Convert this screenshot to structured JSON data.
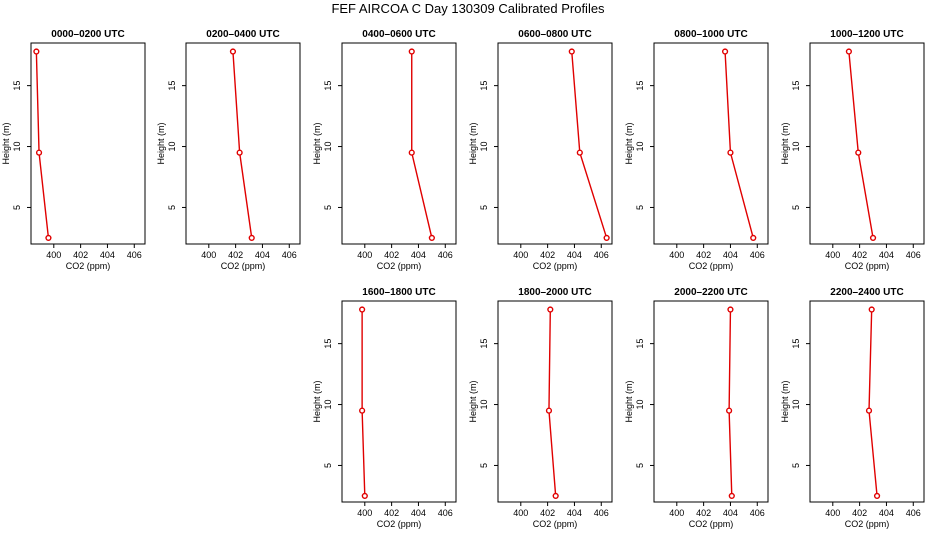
{
  "chart_data": {
    "type": "line",
    "title": "FEF AIRCOA C  Day 130309  Calibrated Profiles",
    "xlabel": "CO2 (ppm)",
    "ylabel": "Height (m)",
    "xlim": [
      398.3,
      406.8
    ],
    "ylim": [
      2.0,
      18.5
    ],
    "xticks": [
      400,
      402,
      404,
      406
    ],
    "yticks": [
      5,
      10,
      15
    ],
    "heights": [
      17.8,
      9.5,
      2.5
    ],
    "panels": [
      {
        "title": "0000–0200 UTC",
        "row": 0,
        "col": 0,
        "series": [
          {
            "name": "CO2",
            "x": [
              398.7,
              398.9,
              399.6
            ],
            "y": [
              17.8,
              9.5,
              2.5
            ]
          }
        ]
      },
      {
        "title": "0200–0400 UTC",
        "row": 0,
        "col": 1,
        "series": [
          {
            "name": "CO2",
            "x": [
              401.8,
              402.3,
              403.2
            ],
            "y": [
              17.8,
              9.5,
              2.5
            ]
          }
        ]
      },
      {
        "title": "0400–0600 UTC",
        "row": 0,
        "col": 2,
        "series": [
          {
            "name": "CO2",
            "x": [
              403.5,
              403.5,
              405.0
            ],
            "y": [
              17.8,
              9.5,
              2.5
            ]
          }
        ]
      },
      {
        "title": "0600–0800 UTC",
        "row": 0,
        "col": 3,
        "series": [
          {
            "name": "CO2",
            "x": [
              403.8,
              404.4,
              406.4
            ],
            "y": [
              17.8,
              9.5,
              2.5
            ]
          }
        ]
      },
      {
        "title": "0800–1000 UTC",
        "row": 0,
        "col": 4,
        "series": [
          {
            "name": "CO2",
            "x": [
              403.6,
              404.0,
              405.7
            ],
            "y": [
              17.8,
              9.5,
              2.5
            ]
          }
        ]
      },
      {
        "title": "1000–1200 UTC",
        "row": 0,
        "col": 5,
        "series": [
          {
            "name": "CO2",
            "x": [
              401.2,
              401.9,
              403.0
            ],
            "y": [
              17.8,
              9.5,
              2.5
            ]
          }
        ]
      },
      {
        "title": "1600–1800 UTC",
        "row": 1,
        "col": 2,
        "series": [
          {
            "name": "CO2",
            "x": [
              399.8,
              399.8,
              400.0
            ],
            "y": [
              17.8,
              9.5,
              2.5
            ]
          }
        ]
      },
      {
        "title": "1800–2000 UTC",
        "row": 1,
        "col": 3,
        "series": [
          {
            "name": "CO2",
            "x": [
              402.2,
              402.1,
              402.6
            ],
            "y": [
              17.8,
              9.5,
              2.5
            ]
          }
        ]
      },
      {
        "title": "2000–2200 UTC",
        "row": 1,
        "col": 4,
        "series": [
          {
            "name": "CO2",
            "x": [
              404.0,
              403.9,
              404.1
            ],
            "y": [
              17.8,
              9.5,
              2.5
            ]
          }
        ]
      },
      {
        "title": "2200–2400 UTC",
        "row": 1,
        "col": 5,
        "series": [
          {
            "name": "CO2",
            "x": [
              402.9,
              402.7,
              403.3
            ],
            "y": [
              17.8,
              9.5,
              2.5
            ]
          }
        ]
      }
    ]
  }
}
